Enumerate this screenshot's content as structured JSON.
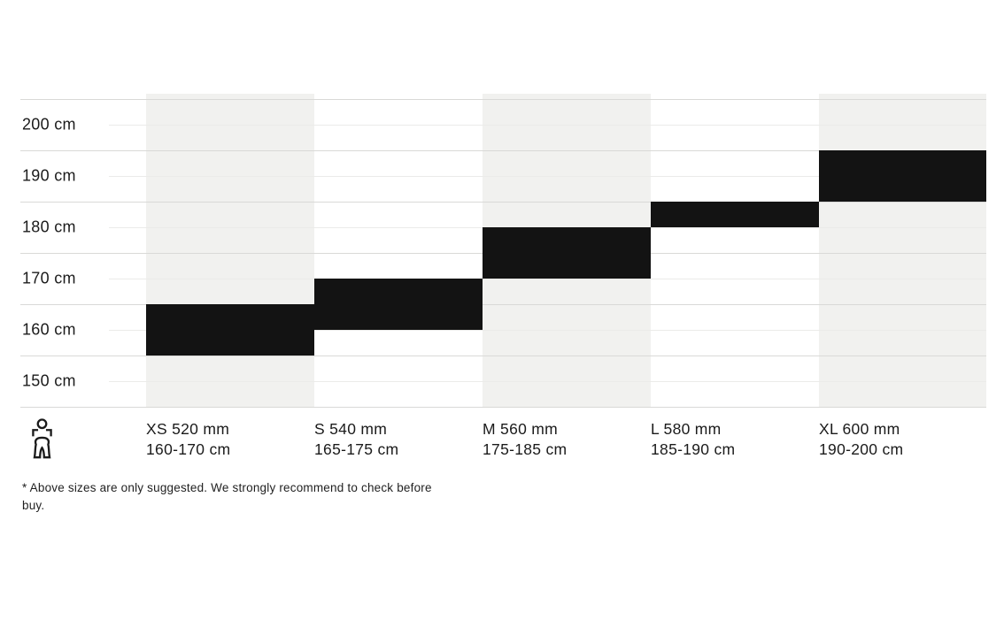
{
  "chart_data": {
    "type": "bar",
    "subtype": "horizontal-range-steps",
    "title": "",
    "xlabel": "",
    "ylabel": "",
    "unit": "cm",
    "y_axis": {
      "tick_values": [
        200,
        190,
        180,
        170,
        160,
        150
      ],
      "tick_labels": [
        "200 cm",
        "190 cm",
        "180 cm",
        "170 cm",
        "160 cm",
        "150 cm"
      ],
      "range_cm": [
        145,
        206
      ],
      "grid_strong_cm": [
        205,
        195,
        185,
        175,
        165,
        155,
        145
      ],
      "grid_faint_cm": [
        200,
        190,
        180,
        170,
        160,
        150
      ],
      "grid": true
    },
    "legend": null,
    "sizes": [
      {
        "code": "XS",
        "label": "XS 520 mm",
        "range_label": "160-170 cm",
        "frame_mm": 520,
        "height_range_cm": [
          160,
          170
        ],
        "bar_cm": [
          155,
          165
        ],
        "shaded": true
      },
      {
        "code": "S",
        "label": "S 540 mm",
        "range_label": "165-175 cm",
        "frame_mm": 540,
        "height_range_cm": [
          165,
          175
        ],
        "bar_cm": [
          160,
          170
        ],
        "shaded": false
      },
      {
        "code": "M",
        "label": "M 560 mm",
        "range_label": "175-185 cm",
        "frame_mm": 560,
        "height_range_cm": [
          175,
          185
        ],
        "bar_cm": [
          170,
          180
        ],
        "shaded": true
      },
      {
        "code": "L",
        "label": "L 580 mm",
        "range_label": "185-190 cm",
        "frame_mm": 580,
        "height_range_cm": [
          185,
          190
        ],
        "bar_cm": [
          180,
          185
        ],
        "shaded": false
      },
      {
        "code": "XL",
        "label": "XL 600 mm",
        "range_label": "190-200 cm",
        "frame_mm": 600,
        "height_range_cm": [
          190,
          200
        ],
        "bar_cm": [
          185,
          195
        ],
        "shaded": true
      }
    ],
    "colors": {
      "bar": "#131313",
      "column_shade": "#f1f1ef",
      "grid_strong": "#d9d9d7",
      "grid_faint": "#ebebe9",
      "text": "#1b1b1b",
      "background": "#ffffff"
    }
  },
  "icons": {
    "person": "person-height-icon"
  },
  "footnote": {
    "lines": [
      "* Above sizes are only suggested. We strongly recommend to check before",
      "buy."
    ]
  }
}
